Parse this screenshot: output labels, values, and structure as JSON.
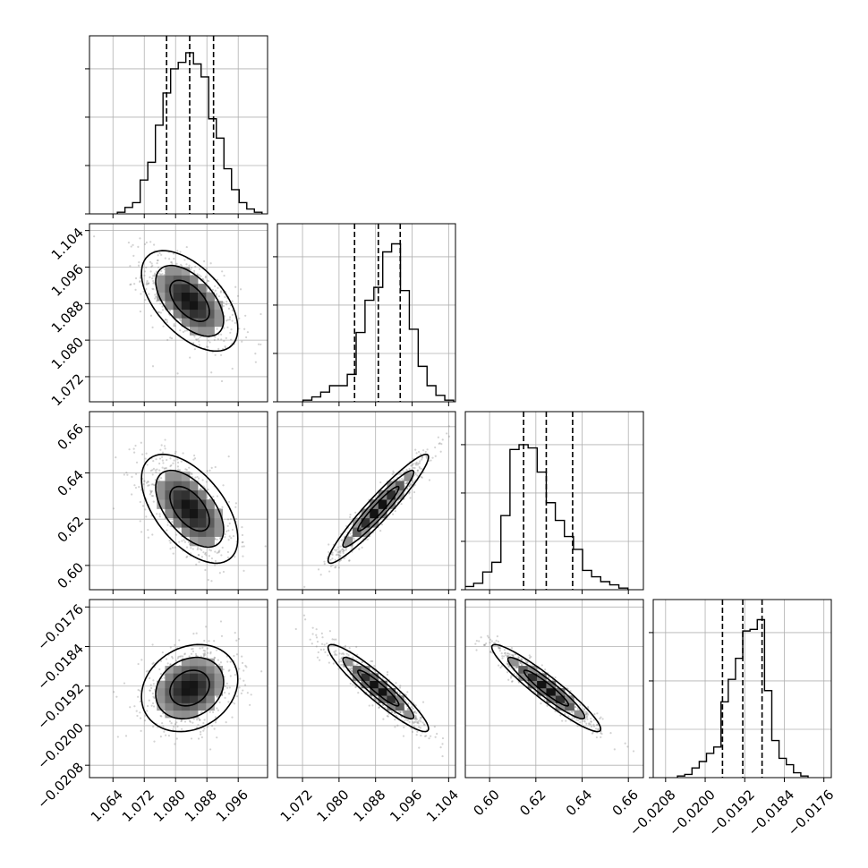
{
  "chart_data": {
    "type": "corner",
    "title": "",
    "parameters": [
      {
        "ticks": [
          1.064,
          1.072,
          1.08,
          1.088,
          1.096
        ],
        "tick_labels": [
          "1.064",
          "1.072",
          "1.080",
          "1.088",
          "1.096"
        ],
        "range": [
          1.058,
          1.1035
        ],
        "mean": 1.0836,
        "std": 0.0056,
        "quantiles": [
          1.0777,
          1.0836,
          1.0897
        ]
      },
      {
        "ticks": [
          1.072,
          1.08,
          1.088,
          1.096,
          1.104
        ],
        "tick_labels": [
          "1.072",
          "1.080",
          "1.088",
          "1.096",
          "1.104"
        ],
        "range": [
          1.0665,
          1.1055
        ],
        "mean": 1.0886,
        "std": 0.005,
        "quantiles": [
          1.0834,
          1.0886,
          1.0934
        ]
      },
      {
        "ticks": [
          0.6,
          0.62,
          0.64,
          0.66
        ],
        "tick_labels": [
          "0.60",
          "0.62",
          "0.64",
          "0.66"
        ],
        "range": [
          0.5895,
          0.6665
        ],
        "mean": 0.6245,
        "std": 0.0107,
        "quantiles": [
          0.6147,
          0.6245,
          0.6359
        ]
      },
      {
        "ticks": [
          -0.0208,
          -0.02,
          -0.0192,
          -0.0184,
          -0.0176
        ],
        "tick_labels": [
          "−0.0208",
          "−0.0200",
          "−0.0192",
          "−0.0184",
          "−0.0176"
        ],
        "range": [
          -0.02105,
          -0.01745
        ],
        "mean": -0.01924,
        "std": 0.0004,
        "quantiles": [
          -0.01965,
          -0.01924,
          -0.01885
        ]
      }
    ],
    "correlations": [
      [
        1.0,
        -0.55,
        -0.55,
        0.2
      ],
      [
        -0.55,
        1.0,
        0.95,
        -0.93
      ],
      [
        -0.55,
        0.95,
        1.0,
        -0.94
      ],
      [
        0.2,
        -0.93,
        -0.94,
        1.0
      ]
    ],
    "histograms": [
      [
        0.01,
        0.04,
        0.07,
        0.21,
        0.32,
        0.55,
        0.75,
        0.9,
        0.94,
        1.0,
        0.93,
        0.85,
        0.59,
        0.47,
        0.28,
        0.15,
        0.07,
        0.03,
        0.01
      ],
      [
        0.01,
        0.03,
        0.06,
        0.1,
        0.1,
        0.17,
        0.43,
        0.63,
        0.71,
        0.93,
        0.98,
        0.69,
        0.45,
        0.22,
        0.1,
        0.04,
        0.01
      ],
      [
        0.02,
        0.04,
        0.11,
        0.17,
        0.46,
        0.87,
        0.9,
        0.88,
        0.73,
        0.54,
        0.43,
        0.33,
        0.25,
        0.12,
        0.08,
        0.05,
        0.03,
        0.01
      ],
      [
        0.01,
        0.02,
        0.06,
        0.1,
        0.15,
        0.19,
        0.47,
        0.61,
        0.74,
        0.91,
        0.92,
        0.98,
        0.54,
        0.23,
        0.12,
        0.08,
        0.03,
        0.01
      ]
    ],
    "grid": true
  }
}
